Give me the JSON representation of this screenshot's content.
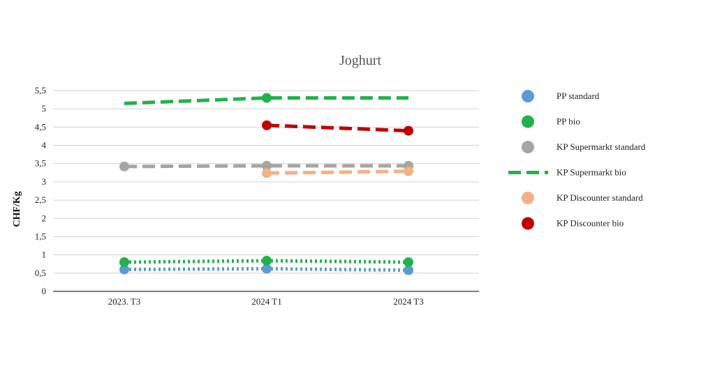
{
  "chart_data": {
    "type": "line",
    "title": "Joghurt",
    "xlabel": "",
    "ylabel": "CHF/Kg",
    "categories": [
      "2023. T3",
      "2024 T1",
      "2024 T3"
    ],
    "y_ticks": [
      "0",
      "0,5",
      "1",
      "1,5",
      "2",
      "2,5",
      "3",
      "3,5",
      "4",
      "4,5",
      "5",
      "5,5"
    ],
    "ylim": [
      0,
      5.5
    ],
    "grid": true,
    "legend_position": "right",
    "series": [
      {
        "name": "PP standard",
        "color": "#5b9bd5",
        "style": "dotted",
        "values": [
          0.6,
          0.62,
          0.58
        ],
        "markers": [
          true,
          true,
          true
        ]
      },
      {
        "name": "PP bio",
        "color": "#21b24b",
        "style": "dotted",
        "values": [
          0.8,
          0.84,
          0.8
        ],
        "markers": [
          true,
          true,
          true
        ]
      },
      {
        "name": "KP Supermarkt standard",
        "color": "#a5a5a5",
        "style": "dashed",
        "values": [
          3.42,
          3.44,
          3.44
        ],
        "markers": [
          true,
          true,
          true
        ]
      },
      {
        "name": "KP Supermarkt bio",
        "color": "#21b24b",
        "style": "dashed",
        "values": [
          5.15,
          5.3,
          5.3
        ],
        "markers": [
          false,
          true,
          false
        ]
      },
      {
        "name": "KP Discounter standard",
        "color": "#f4b183",
        "style": "dashed",
        "values": [
          null,
          3.24,
          3.29
        ],
        "markers": [
          false,
          true,
          true
        ]
      },
      {
        "name": "KP Discounter bio",
        "color": "#c00000",
        "style": "dashed",
        "values": [
          null,
          4.55,
          4.4
        ],
        "markers": [
          false,
          true,
          true
        ]
      }
    ]
  }
}
